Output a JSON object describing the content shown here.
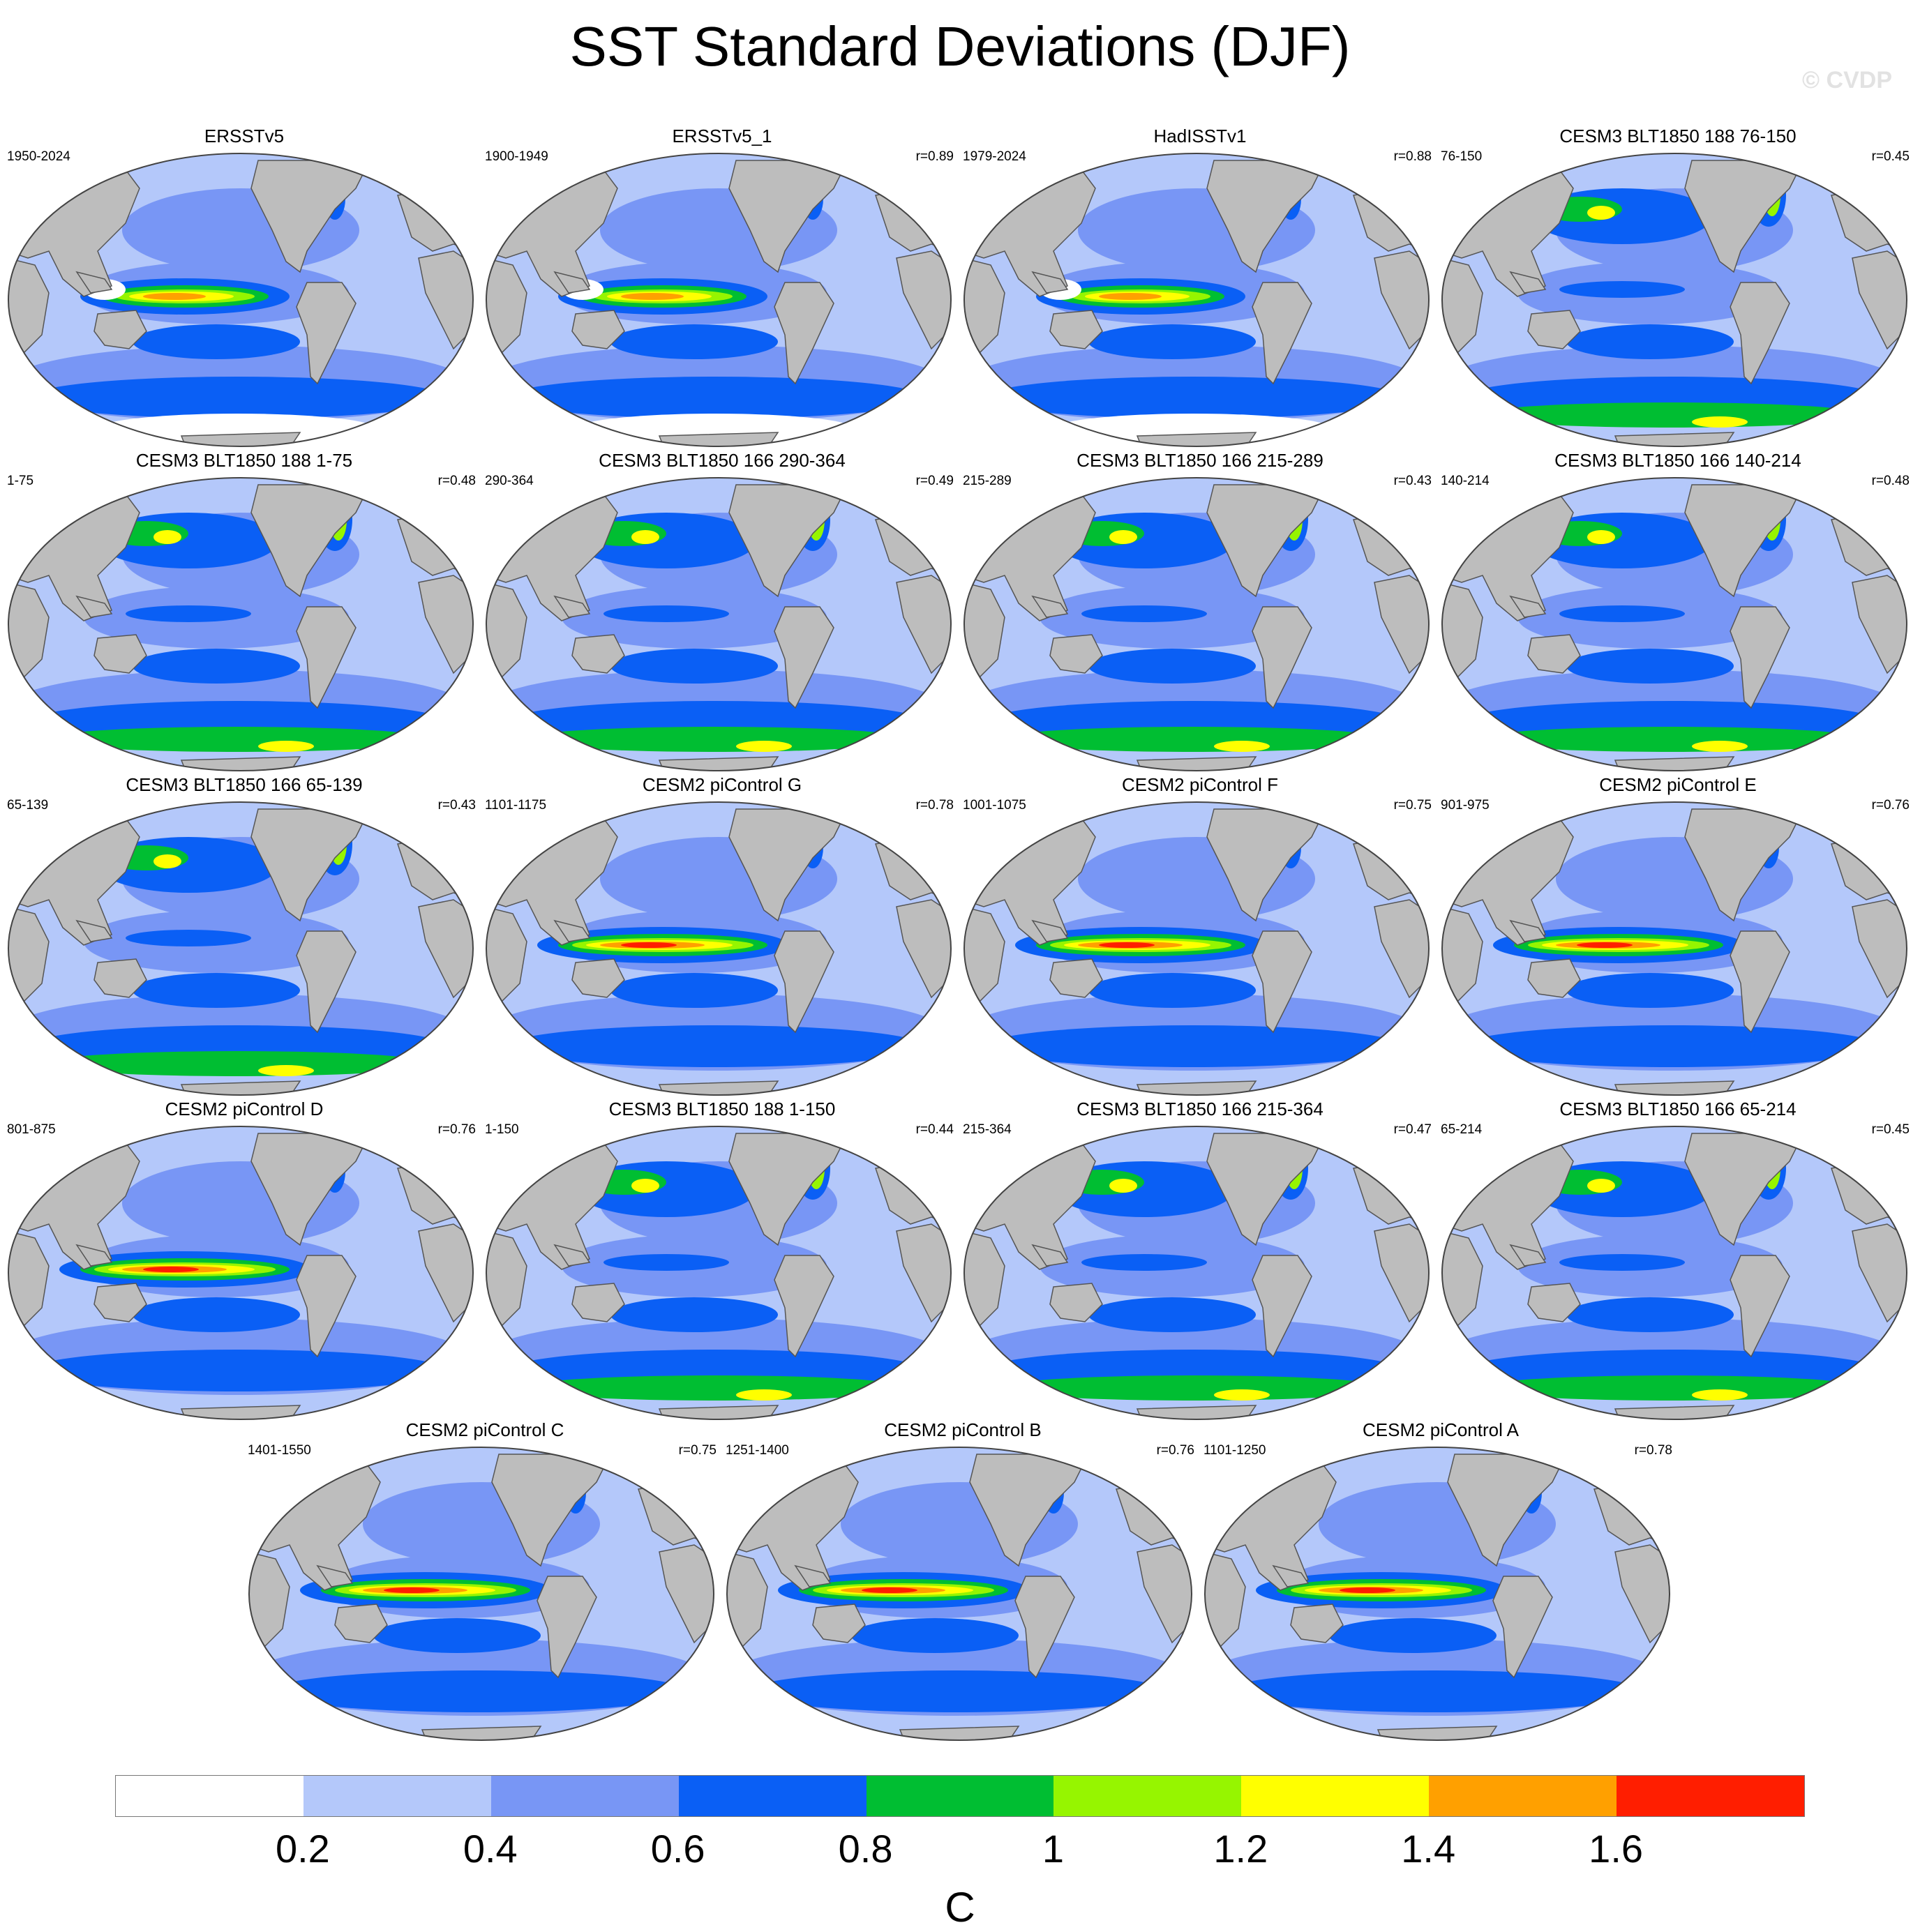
{
  "title": "SST Standard Deviations (DJF)",
  "watermark": "© CVDP",
  "panels": [
    {
      "title": "ERSSTv5",
      "period": "1950-2024",
      "corr": ""
    },
    {
      "title": "ERSSTv5_1",
      "period": "1900-1949",
      "corr": "r=0.89"
    },
    {
      "title": "HadISSTv1",
      "period": "1979-2024",
      "corr": "r=0.88"
    },
    {
      "title": "CESM3 BLT1850 188 76-150",
      "period": "76-150",
      "corr": "r=0.45"
    },
    {
      "title": "CESM3 BLT1850 188 1-75",
      "period": "1-75",
      "corr": "r=0.48"
    },
    {
      "title": "CESM3 BLT1850 166 290-364",
      "period": "290-364",
      "corr": "r=0.49"
    },
    {
      "title": "CESM3 BLT1850 166 215-289",
      "period": "215-289",
      "corr": "r=0.43"
    },
    {
      "title": "CESM3 BLT1850 166 140-214",
      "period": "140-214",
      "corr": "r=0.48"
    },
    {
      "title": "CESM3 BLT1850 166 65-139",
      "period": "65-139",
      "corr": "r=0.43"
    },
    {
      "title": "CESM2 piControl G",
      "period": "1101-1175",
      "corr": "r=0.78"
    },
    {
      "title": "CESM2 piControl F",
      "period": "1001-1075",
      "corr": "r=0.75"
    },
    {
      "title": "CESM2 piControl E",
      "period": "901-975",
      "corr": "r=0.76"
    },
    {
      "title": "CESM2 piControl D",
      "period": "801-875",
      "corr": "r=0.76"
    },
    {
      "title": "CESM3 BLT1850 188 1-150",
      "period": "1-150",
      "corr": "r=0.44"
    },
    {
      "title": "CESM3 BLT1850 166 215-364",
      "period": "215-364",
      "corr": "r=0.47"
    },
    {
      "title": "CESM3 BLT1850 166 65-214",
      "period": "65-214",
      "corr": "r=0.45"
    },
    {
      "title": "CESM2 piControl C",
      "period": "1401-1550",
      "corr": "r=0.75"
    },
    {
      "title": "CESM2 piControl B",
      "period": "1251-1400",
      "corr": "r=0.76"
    },
    {
      "title": "CESM2 piControl A",
      "period": "1101-1250",
      "corr": "r=0.78"
    }
  ],
  "colorbar": {
    "colors": [
      "#ffffff",
      "#b4c8fa",
      "#7896f5",
      "#0a5ff5",
      "#00be32",
      "#96f500",
      "#ffff00",
      "#ffa000",
      "#ff1e00"
    ],
    "ticks": [
      "0.2",
      "0.4",
      "0.6",
      "0.8",
      "1",
      "1.2",
      "1.4",
      "1.6"
    ],
    "unit": "C"
  },
  "colors": {
    "land": "#bdbdbd",
    "coast": "#555555"
  }
}
